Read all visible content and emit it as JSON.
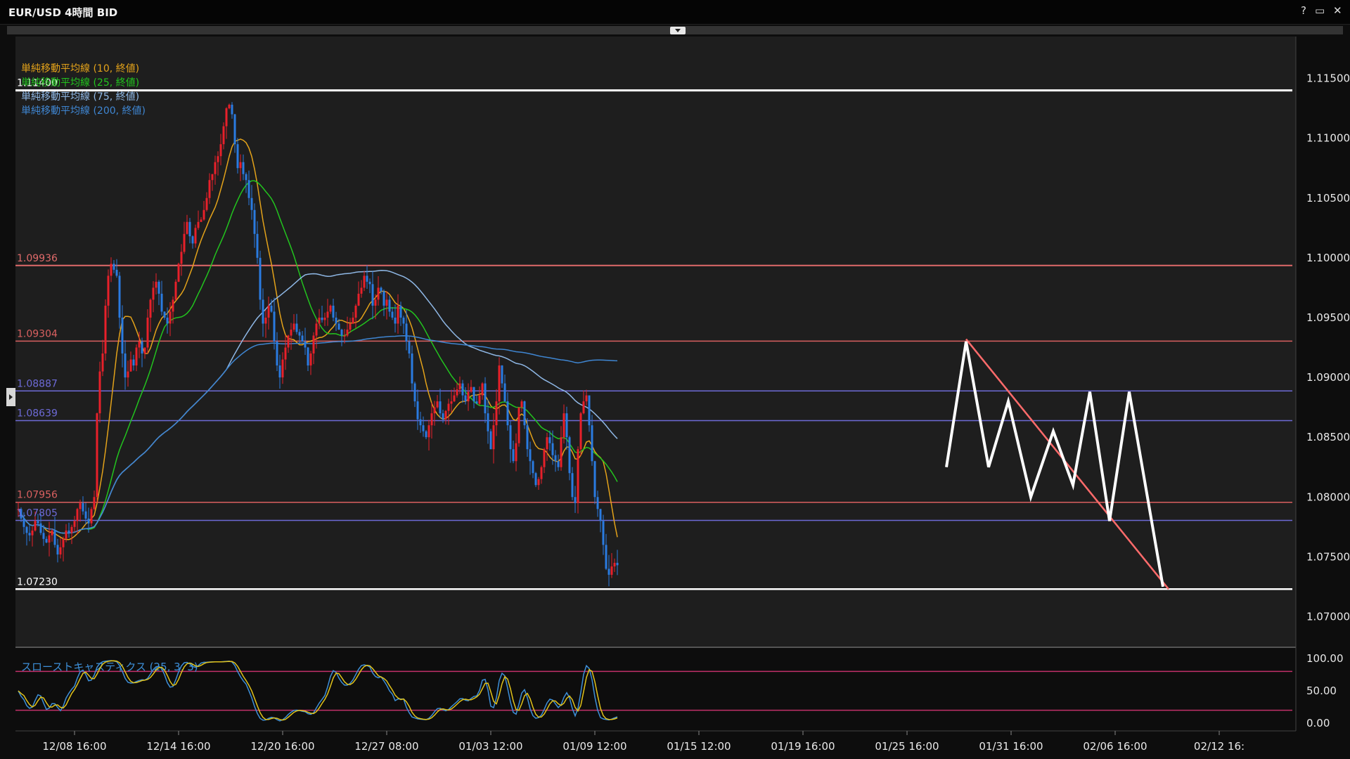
{
  "window": {
    "title": "EUR/USD 4時間 BID",
    "controls": [
      "?",
      "▭",
      "✕"
    ]
  },
  "price_axis": {
    "ticks": [
      "1.11500",
      "1.11000",
      "1.10500",
      "1.10000",
      "1.09500",
      "1.09000",
      "1.08500",
      "1.08000",
      "1.07500",
      "1.07000"
    ],
    "tick_values": [
      1.115,
      1.11,
      1.105,
      1.1,
      1.095,
      1.09,
      1.085,
      1.08,
      1.075,
      1.07
    ],
    "range": [
      1.0675,
      1.1185
    ]
  },
  "time_axis": {
    "labels": [
      "12/08 16:00",
      "12/14 16:00",
      "12/20 16:00",
      "12/27 08:00",
      "01/03 12:00",
      "01/09 12:00",
      "01/15 12:00",
      "01/19 16:00",
      "01/25 16:00",
      "01/31 16:00",
      "02/06 16:00",
      "02/12 16:"
    ]
  },
  "legend": [
    {
      "text": "単純移動平均線 (10, 終値)",
      "color": "#e3a21a"
    },
    {
      "text": "単純移動平均線 (25, 終値)",
      "color": "#22c41e"
    },
    {
      "text": "単純移動平均線 (75, 終値)",
      "color": "#8fb8e6"
    },
    {
      "text": "単純移動平均線 (200, 終値)",
      "color": "#3f86d2"
    }
  ],
  "hlines": [
    {
      "label": "1.11400",
      "value": 1.114,
      "color": "#ffffff",
      "width": 3
    },
    {
      "label": "1.09936",
      "value": 1.09936,
      "color": "#e06a6a",
      "width": 2
    },
    {
      "label": "1.09304",
      "value": 1.09304,
      "color": "#d96060",
      "width": 1.5
    },
    {
      "label": "1.08887",
      "value": 1.08887,
      "color": "#6d6ad6",
      "width": 1.5
    },
    {
      "label": "1.08639",
      "value": 1.08639,
      "color": "#6d6ad6",
      "width": 1.5
    },
    {
      "label": "1.07956",
      "value": 1.07956,
      "color": "#d96060",
      "width": 1.5
    },
    {
      "label": "1.07805",
      "value": 1.07805,
      "color": "#6d6ad6",
      "width": 1.5
    },
    {
      "label": "1.07230",
      "value": 1.0723,
      "color": "#ffffff",
      "width": 2.5
    }
  ],
  "oscillator": {
    "title": "スローストキャスティクス (25, 3, 3)",
    "ticks": [
      "100.00",
      "50.00",
      "0.00"
    ],
    "tick_values": [
      100,
      50,
      0
    ],
    "levels": [
      80,
      20
    ],
    "k_color": "#3d8fd8",
    "d_color": "#e0c21a"
  },
  "colors": {
    "background": "#1e1e1e",
    "up_candle": "#e8202a",
    "down_candle": "#2a7be0",
    "drawing": "#ffffff",
    "trendline": "#ff6b6b",
    "ma10": "#e3a21a",
    "ma25": "#22c41e",
    "ma75": "#8fb8e6",
    "ma200": "#3f86d2"
  },
  "chart_data": {
    "type": "candlestick",
    "symbol": "EUR/USD",
    "timeframe": "4時間",
    "x_labels": [
      "12/08 16:00",
      "12/14 16:00",
      "12/20 16:00",
      "12/27 08:00",
      "01/03 12:00",
      "01/09 12:00",
      "01/15 12:00",
      "01/19 16:00",
      "01/25 16:00",
      "01/31 16:00",
      "02/06 16:00",
      "02/12 16:"
    ],
    "x_label_index": [
      20,
      57,
      94,
      131,
      168,
      205,
      242,
      279,
      316,
      353,
      390,
      427
    ],
    "closes": [
      1.079,
      1.0782,
      1.0775,
      1.077,
      1.0768,
      1.0772,
      1.078,
      1.0778,
      1.077,
      1.0765,
      1.0762,
      1.0768,
      1.0772,
      1.076,
      1.0752,
      1.0758,
      1.0765,
      1.0772,
      1.077,
      1.0775,
      1.078,
      1.079,
      1.0795,
      1.0788,
      1.0782,
      1.0778,
      1.079,
      1.08,
      1.087,
      1.0905,
      1.092,
      1.096,
      1.0985,
      1.0995,
      1.099,
      1.0985,
      1.095,
      1.092,
      1.09,
      1.0905,
      1.0915,
      1.091,
      1.0925,
      1.093,
      1.092,
      1.0925,
      1.095,
      1.0965,
      1.0975,
      1.098,
      1.097,
      1.0955,
      1.095,
      1.0945,
      1.0955,
      1.0965,
      1.098,
      1.0995,
      1.1005,
      1.102,
      1.103,
      1.1018,
      1.1012,
      1.1025,
      1.103,
      1.1032,
      1.104,
      1.105,
      1.1065,
      1.107,
      1.108,
      1.1085,
      1.1095,
      1.111,
      1.1125,
      1.1128,
      1.112,
      1.1095,
      1.1075,
      1.108,
      1.107,
      1.1065,
      1.105,
      1.104,
      1.102,
      1.1,
      1.0965,
      1.0945,
      1.095,
      1.096,
      1.0955,
      1.093,
      1.091,
      1.09,
      1.0915,
      1.0925,
      1.0935,
      1.094,
      1.0945,
      1.0938,
      1.0935,
      1.093,
      1.0925,
      1.091,
      1.092,
      1.0935,
      1.0945,
      1.095,
      1.0948,
      1.095,
      1.0955,
      1.096,
      1.095,
      1.0945,
      1.094,
      1.0935,
      1.0935,
      1.094,
      1.0945,
      1.095,
      1.096,
      1.097,
      1.0975,
      1.0985,
      1.098,
      1.0978,
      1.096,
      1.0965,
      1.0975,
      1.0972,
      1.096,
      1.0965,
      1.0955,
      1.095,
      1.0945,
      1.096,
      1.095,
      1.0945,
      1.093,
      1.092,
      1.0895,
      1.088,
      1.0865,
      1.086,
      1.0855,
      1.085,
      1.086,
      1.087,
      1.0875,
      1.088,
      1.087,
      1.0865,
      1.0872,
      1.0878,
      1.088,
      1.0885,
      1.089,
      1.0895,
      1.0885,
      1.088,
      1.0888,
      1.0892,
      1.088,
      1.0878,
      1.0885,
      1.0895,
      1.087,
      1.0855,
      1.084,
      1.086,
      1.088,
      1.091,
      1.0895,
      1.088,
      1.086,
      1.084,
      1.083,
      1.0845,
      1.0875,
      1.088,
      1.086,
      1.084,
      1.083,
      1.082,
      1.081,
      1.0815,
      1.0825,
      1.084,
      1.085,
      1.0845,
      1.0835,
      1.083,
      1.0825,
      1.085,
      1.087,
      1.085,
      1.082,
      1.08,
      1.0795,
      1.084,
      1.087,
      1.088,
      1.0885,
      1.086,
      1.083,
      1.08,
      1.079,
      1.078,
      1.076,
      1.074,
      1.0735,
      1.0742,
      1.0745,
      1.0743
    ],
    "ma_period_note": "SMA 10/25/75/200 computed from closes",
    "oscillator_type": "slow stochastic",
    "oscillator_params": [
      25,
      3,
      3
    ],
    "levels_values": [
      1.114,
      1.09936,
      1.09304,
      1.08887,
      1.08639,
      1.07956,
      1.07805,
      1.0723
    ],
    "zigzag_prices": [
      1.0825,
      1.093,
      1.0825,
      1.088,
      1.08,
      1.0855,
      1.081,
      1.0888,
      1.078,
      1.0888,
      1.0725
    ],
    "zigzag_index": [
      330,
      337,
      345,
      352,
      360,
      368,
      375,
      381,
      388,
      395,
      407
    ],
    "trendline": {
      "from_price": 1.0932,
      "to_price": 1.0723,
      "from_index": 337,
      "to_index": 409
    },
    "ylim": [
      1.0675,
      1.1185
    ]
  }
}
